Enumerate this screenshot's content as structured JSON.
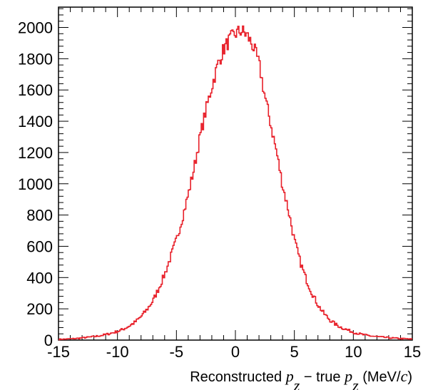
{
  "chart_data": {
    "type": "line",
    "title": "",
    "xlabel": {
      "prefix": "Reconstructed ",
      "var1": "p",
      "sub1": "z",
      "middle": " − true ",
      "var2": "p",
      "sub2": "z",
      "unit_open": " (MeV/",
      "unit_var": "c",
      "unit_close": ")"
    },
    "ylabel": "",
    "xlim": [
      -15,
      15
    ],
    "ylim": [
      0,
      2130
    ],
    "grid": false,
    "legend": "none",
    "line_color": "#e8202a",
    "x_ticks": [
      -15,
      -10,
      -5,
      0,
      5,
      10,
      15
    ],
    "x_tick_labels": [
      "-15",
      "-10",
      "-5",
      "0",
      "5",
      "10",
      "15"
    ],
    "y_ticks": [
      0,
      200,
      400,
      600,
      800,
      1000,
      1200,
      1400,
      1600,
      1800,
      2000
    ],
    "y_tick_labels": [
      "0",
      "200",
      "400",
      "600",
      "800",
      "1000",
      "1200",
      "1400",
      "1600",
      "1800",
      "2000"
    ],
    "series": [
      {
        "x": [
          -15,
          -14.5,
          -14,
          -13.5,
          -13,
          -12.5,
          -12,
          -11.5,
          -11,
          -10.5,
          -10,
          -9.5,
          -9,
          -8.5,
          -8,
          -7.5,
          -7,
          -6.5,
          -6,
          -5.5,
          -5,
          -4.5,
          -4,
          -3.5,
          -3,
          -2.5,
          -2,
          -1.5,
          -1,
          -0.5,
          0,
          0.5,
          1,
          1.5,
          2,
          2.5,
          3,
          3.5,
          4,
          4.5,
          5,
          5.5,
          6,
          6.5,
          7,
          7.5,
          8,
          8.5,
          9,
          9.5,
          10,
          10.5,
          11,
          11.5,
          12,
          12.5,
          13,
          13.5,
          14,
          14.5,
          15
        ],
        "values": [
          5,
          6,
          8,
          10,
          14,
          18,
          22,
          28,
          35,
          45,
          55,
          70,
          90,
          115,
          150,
          195,
          250,
          330,
          420,
          530,
          640,
          780,
          930,
          1100,
          1300,
          1470,
          1620,
          1760,
          1860,
          1920,
          1960,
          1980,
          1950,
          1880,
          1770,
          1560,
          1380,
          1200,
          990,
          830,
          640,
          500,
          390,
          300,
          225,
          170,
          130,
          100,
          80,
          65,
          50,
          40,
          32,
          26,
          22,
          18,
          15,
          12,
          10,
          8,
          6
        ]
      }
    ]
  }
}
